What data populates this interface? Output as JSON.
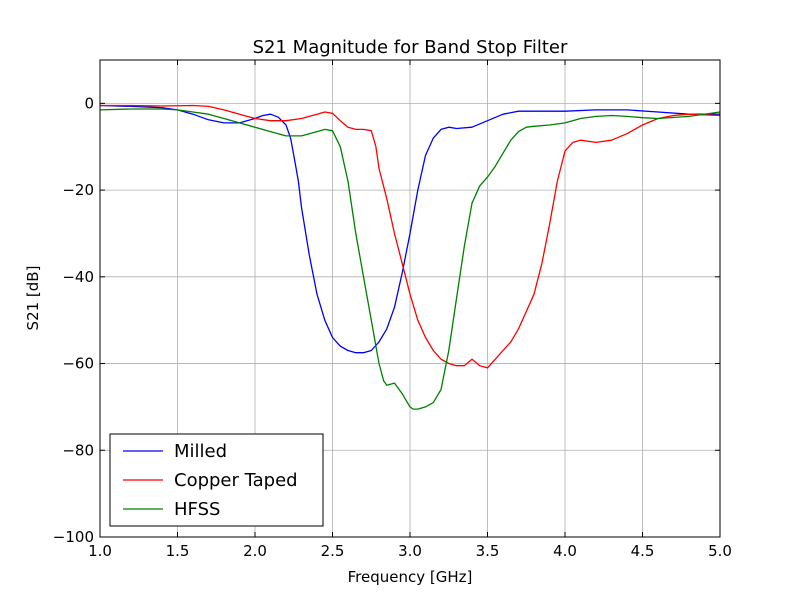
{
  "chart_data": {
    "type": "line",
    "title": "S21 Magnitude for Band Stop Filter",
    "xlabel": "Frequency [GHz]",
    "ylabel": "S21 [dB]",
    "xlim": [
      1.0,
      5.0
    ],
    "ylim": [
      -100,
      10
    ],
    "x_ticks": [
      1.0,
      1.5,
      2.0,
      2.5,
      3.0,
      3.5,
      4.0,
      4.5,
      5.0
    ],
    "x_tick_labels": [
      "1.0",
      "1.5",
      "2.0",
      "2.5",
      "3.0",
      "3.5",
      "4.0",
      "4.5",
      "5.0"
    ],
    "y_ticks": [
      0,
      -20,
      -40,
      -60,
      -80,
      -100
    ],
    "y_tick_labels": [
      "0",
      "−20",
      "−40",
      "−60",
      "−80",
      "−100"
    ],
    "grid": true,
    "legend_position": "bottom-left",
    "series": [
      {
        "name": "Milled",
        "color": "#0000ff",
        "x": [
          1.0,
          1.2,
          1.4,
          1.5,
          1.6,
          1.7,
          1.8,
          1.9,
          2.0,
          2.05,
          2.1,
          2.15,
          2.2,
          2.23,
          2.25,
          2.28,
          2.3,
          2.35,
          2.4,
          2.45,
          2.5,
          2.55,
          2.6,
          2.65,
          2.7,
          2.75,
          2.8,
          2.85,
          2.9,
          2.95,
          3.0,
          3.05,
          3.1,
          3.15,
          3.2,
          3.25,
          3.3,
          3.4,
          3.5,
          3.6,
          3.7,
          3.8,
          4.0,
          4.2,
          4.4,
          4.6,
          4.8,
          5.0
        ],
        "y": [
          -0.5,
          -0.7,
          -1.0,
          -1.5,
          -2.5,
          -3.8,
          -4.5,
          -4.5,
          -3.5,
          -2.8,
          -2.5,
          -3.2,
          -5.0,
          -8.0,
          -12.0,
          -18.0,
          -24.0,
          -35.0,
          -44.0,
          -50.0,
          -54.0,
          -56.0,
          -57.0,
          -57.5,
          -57.5,
          -57.0,
          -55.0,
          -52.0,
          -47.0,
          -39.0,
          -30.0,
          -20.0,
          -12.0,
          -8.0,
          -6.0,
          -5.5,
          -5.8,
          -5.5,
          -4.0,
          -2.5,
          -1.8,
          -1.8,
          -1.8,
          -1.5,
          -1.5,
          -2.0,
          -2.5,
          -2.5
        ]
      },
      {
        "name": "Copper Taped",
        "color": "#ff0000",
        "x": [
          1.0,
          1.2,
          1.4,
          1.6,
          1.7,
          1.8,
          1.9,
          2.0,
          2.1,
          2.2,
          2.3,
          2.4,
          2.45,
          2.5,
          2.55,
          2.6,
          2.65,
          2.7,
          2.75,
          2.78,
          2.8,
          2.85,
          2.9,
          2.95,
          3.0,
          3.05,
          3.1,
          3.15,
          3.2,
          3.25,
          3.3,
          3.35,
          3.4,
          3.45,
          3.5,
          3.55,
          3.6,
          3.65,
          3.7,
          3.75,
          3.8,
          3.85,
          3.9,
          3.95,
          4.0,
          4.05,
          4.1,
          4.2,
          4.3,
          4.4,
          4.5,
          4.6,
          4.7,
          4.8,
          5.0
        ],
        "y": [
          -0.5,
          -0.5,
          -0.6,
          -0.5,
          -0.7,
          -1.5,
          -2.5,
          -3.5,
          -4.0,
          -4.0,
          -3.5,
          -2.5,
          -2.0,
          -2.3,
          -4.0,
          -5.5,
          -6.0,
          -6.0,
          -6.3,
          -10.0,
          -15.0,
          -22.0,
          -30.0,
          -37.0,
          -44.0,
          -50.0,
          -54.0,
          -57.0,
          -59.0,
          -60.0,
          -60.5,
          -60.5,
          -59.0,
          -60.5,
          -61.0,
          -59.0,
          -57.0,
          -55.0,
          -52.0,
          -48.0,
          -44.0,
          -37.0,
          -28.0,
          -18.0,
          -11.0,
          -9.0,
          -8.5,
          -9.0,
          -8.5,
          -7.0,
          -5.0,
          -3.5,
          -2.8,
          -2.5,
          -2.8
        ]
      },
      {
        "name": "HFSS",
        "color": "#008000",
        "x": [
          1.0,
          1.2,
          1.4,
          1.5,
          1.6,
          1.7,
          1.8,
          1.9,
          2.0,
          2.1,
          2.2,
          2.3,
          2.4,
          2.45,
          2.5,
          2.55,
          2.6,
          2.65,
          2.7,
          2.75,
          2.8,
          2.83,
          2.85,
          2.9,
          2.95,
          3.0,
          3.02,
          3.05,
          3.1,
          3.15,
          3.2,
          3.25,
          3.3,
          3.35,
          3.4,
          3.45,
          3.5,
          3.55,
          3.6,
          3.65,
          3.7,
          3.75,
          3.8,
          3.9,
          4.0,
          4.1,
          4.2,
          4.3,
          4.4,
          4.5,
          4.6,
          4.8,
          5.0
        ],
        "y": [
          -1.5,
          -1.3,
          -1.3,
          -1.5,
          -2.0,
          -2.5,
          -3.5,
          -4.5,
          -5.5,
          -6.5,
          -7.5,
          -7.5,
          -6.5,
          -6.0,
          -6.3,
          -10.0,
          -18.0,
          -30.0,
          -40.0,
          -50.0,
          -60.0,
          -64.0,
          -65.0,
          -64.5,
          -67.0,
          -70.0,
          -70.5,
          -70.5,
          -70.0,
          -69.0,
          -66.0,
          -57.0,
          -45.0,
          -33.0,
          -23.0,
          -19.0,
          -17.0,
          -14.5,
          -11.5,
          -8.5,
          -6.5,
          -5.5,
          -5.3,
          -5.0,
          -4.5,
          -3.5,
          -3.0,
          -2.8,
          -3.0,
          -3.3,
          -3.5,
          -3.0,
          -2.0
        ]
      }
    ]
  }
}
